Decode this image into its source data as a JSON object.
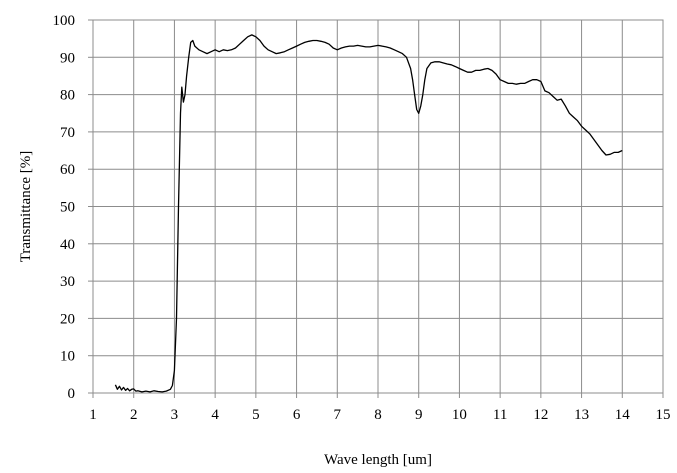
{
  "chart_data": {
    "type": "line",
    "title": "",
    "xlabel": "Wave length  [um]",
    "ylabel": "Transmittance   [%]",
    "xlim": [
      1,
      15
    ],
    "ylim": [
      0,
      100
    ],
    "x_ticks": [
      1,
      2,
      3,
      4,
      5,
      6,
      7,
      8,
      9,
      10,
      11,
      12,
      13,
      14,
      15
    ],
    "y_ticks": [
      0,
      10,
      20,
      30,
      40,
      50,
      60,
      70,
      80,
      90,
      100
    ],
    "grid": true,
    "legend": "none",
    "line_color": "#000000",
    "series": [
      {
        "x": [
          1.55,
          1.6,
          1.65,
          1.7,
          1.75,
          1.8,
          1.85,
          1.9,
          1.95,
          2.0,
          2.05,
          2.1,
          2.2,
          2.3,
          2.4,
          2.5,
          2.6,
          2.7,
          2.8,
          2.9,
          2.95,
          3.0,
          3.05,
          3.1,
          3.15,
          3.18,
          3.22,
          3.26,
          3.3,
          3.35,
          3.4,
          3.45,
          3.5,
          3.6,
          3.7,
          3.8,
          3.9,
          4.0,
          4.1,
          4.2,
          4.3,
          4.4,
          4.5,
          4.6,
          4.7,
          4.8,
          4.9,
          5.0,
          5.1,
          5.2,
          5.3,
          5.4,
          5.5,
          5.6,
          5.7,
          5.8,
          5.9,
          6.0,
          6.1,
          6.2,
          6.3,
          6.4,
          6.5,
          6.6,
          6.7,
          6.8,
          6.9,
          7.0,
          7.1,
          7.2,
          7.3,
          7.4,
          7.5,
          7.6,
          7.7,
          7.8,
          7.9,
          8.0,
          8.1,
          8.2,
          8.3,
          8.4,
          8.5,
          8.6,
          8.7,
          8.8,
          8.85,
          8.9,
          8.95,
          9.0,
          9.05,
          9.1,
          9.15,
          9.2,
          9.3,
          9.4,
          9.5,
          9.6,
          9.7,
          9.8,
          9.9,
          10.0,
          10.1,
          10.2,
          10.3,
          10.4,
          10.5,
          10.6,
          10.7,
          10.8,
          10.9,
          11.0,
          11.1,
          11.2,
          11.3,
          11.4,
          11.5,
          11.6,
          11.7,
          11.8,
          11.9,
          12.0,
          12.1,
          12.2,
          12.3,
          12.4,
          12.5,
          12.6,
          12.7,
          12.8,
          12.9,
          13.0,
          13.1,
          13.2,
          13.3,
          13.4,
          13.5,
          13.6,
          13.7,
          13.8,
          13.9,
          14.0
        ],
        "y": [
          2.2,
          1.0,
          1.8,
          0.8,
          1.5,
          0.7,
          1.2,
          0.6,
          1.0,
          1.1,
          0.5,
          0.6,
          0.3,
          0.5,
          0.3,
          0.6,
          0.4,
          0.3,
          0.5,
          1.0,
          2.0,
          6.0,
          20.0,
          50.0,
          75.0,
          82.0,
          78.0,
          80.0,
          85.0,
          90.0,
          94.0,
          94.5,
          93.0,
          92.0,
          91.5,
          91.0,
          91.5,
          92.0,
          91.5,
          92.0,
          91.8,
          92.0,
          92.5,
          93.5,
          94.5,
          95.5,
          96.0,
          95.5,
          94.5,
          93.0,
          92.0,
          91.5,
          91.0,
          91.2,
          91.5,
          92.0,
          92.5,
          93.0,
          93.5,
          94.0,
          94.3,
          94.5,
          94.5,
          94.3,
          94.0,
          93.5,
          92.5,
          92.0,
          92.5,
          92.8,
          93.0,
          93.0,
          93.2,
          93.0,
          92.8,
          92.8,
          93.0,
          93.2,
          93.0,
          92.8,
          92.5,
          92.0,
          91.5,
          91.0,
          90.0,
          87.0,
          84.0,
          80.0,
          76.0,
          75.0,
          77.0,
          80.0,
          84.0,
          87.0,
          88.5,
          88.8,
          88.8,
          88.5,
          88.2,
          88.0,
          87.5,
          87.0,
          86.5,
          86.0,
          86.0,
          86.5,
          86.5,
          86.8,
          87.0,
          86.5,
          85.5,
          84.0,
          83.5,
          83.0,
          83.0,
          82.8,
          83.0,
          83.0,
          83.5,
          84.0,
          84.0,
          83.5,
          81.0,
          80.5,
          79.5,
          78.5,
          78.8,
          77.0,
          75.0,
          74.0,
          73.0,
          71.5,
          70.5,
          69.5,
          68.0,
          66.5,
          65.0,
          63.8,
          64.0,
          64.5,
          64.5,
          65.0
        ]
      }
    ]
  }
}
